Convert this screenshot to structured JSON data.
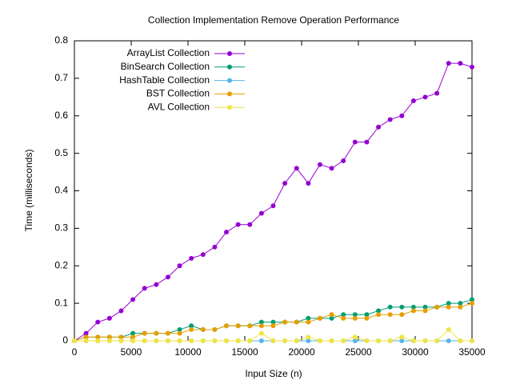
{
  "chart_data": {
    "type": "line",
    "title": "Collection Implementation Remove Operation Performance",
    "x_label": "Input Size (n)",
    "y_label": "Time (milliseconds)",
    "x": [
      0,
      1029,
      2059,
      3088,
      4118,
      5147,
      6176,
      7206,
      8235,
      9265,
      10294,
      11324,
      12353,
      13382,
      14412,
      15441,
      16471,
      17500,
      18529,
      19559,
      20588,
      21618,
      22647,
      23676,
      24706,
      25735,
      26765,
      27794,
      28824,
      29853,
      30882,
      31912,
      32941,
      33971,
      35000
    ],
    "xlim": [
      0,
      35000
    ],
    "xticks": [
      0,
      5000,
      10000,
      15000,
      20000,
      25000,
      30000,
      35000
    ],
    "ylim": [
      0,
      0.8
    ],
    "yticks": [
      0,
      0.1,
      0.2,
      0.3,
      0.4,
      0.5,
      0.6,
      0.7,
      0.8
    ],
    "legend": "top-left",
    "series": [
      {
        "name": "ArrayList Collection",
        "color": "#9400d3",
        "values": [
          0,
          0.02,
          0.05,
          0.06,
          0.08,
          0.11,
          0.14,
          0.15,
          0.17,
          0.2,
          0.22,
          0.23,
          0.25,
          0.29,
          0.31,
          0.31,
          0.34,
          0.36,
          0.42,
          0.46,
          0.42,
          0.47,
          0.46,
          0.48,
          0.53,
          0.53,
          0.57,
          0.59,
          0.6,
          0.64,
          0.65,
          0.66,
          0.74,
          0.74,
          0.73
        ]
      },
      {
        "name": "BinSearch Collection",
        "color": "#009e73",
        "values": [
          0,
          0.01,
          0.01,
          0.01,
          0.01,
          0.02,
          0.02,
          0.02,
          0.02,
          0.03,
          0.04,
          0.03,
          0.03,
          0.04,
          0.04,
          0.04,
          0.05,
          0.05,
          0.05,
          0.05,
          0.06,
          0.06,
          0.06,
          0.07,
          0.07,
          0.07,
          0.08,
          0.09,
          0.09,
          0.09,
          0.09,
          0.09,
          0.1,
          0.1,
          0.11
        ]
      },
      {
        "name": "HashTable Collection",
        "color": "#56b4e9",
        "values": [
          0,
          0,
          0,
          0,
          0,
          0,
          0,
          0,
          0,
          0,
          0,
          0,
          0,
          0,
          0,
          0,
          0,
          0,
          0,
          0,
          0,
          0,
          0,
          0,
          0,
          0,
          0,
          0,
          0,
          0,
          0,
          0,
          0,
          0,
          0
        ]
      },
      {
        "name": "BST Collection",
        "color": "#e69f00",
        "values": [
          0,
          0.01,
          0.01,
          0.01,
          0.01,
          0.01,
          0.02,
          0.02,
          0.02,
          0.02,
          0.03,
          0.03,
          0.03,
          0.04,
          0.04,
          0.04,
          0.04,
          0.04,
          0.05,
          0.05,
          0.05,
          0.06,
          0.07,
          0.06,
          0.06,
          0.06,
          0.07,
          0.07,
          0.07,
          0.08,
          0.08,
          0.09,
          0.09,
          0.09,
          0.1
        ]
      },
      {
        "name": "AVL Collection",
        "color": "#f0e442",
        "values": [
          0,
          0,
          0,
          0,
          0,
          0,
          0,
          0,
          0,
          0,
          0,
          0,
          0,
          0,
          0,
          0,
          0.02,
          0,
          0,
          0,
          0.01,
          0,
          0,
          0,
          0.01,
          0,
          0,
          0,
          0.01,
          0,
          0,
          0,
          0.03,
          0,
          0
        ]
      }
    ]
  }
}
